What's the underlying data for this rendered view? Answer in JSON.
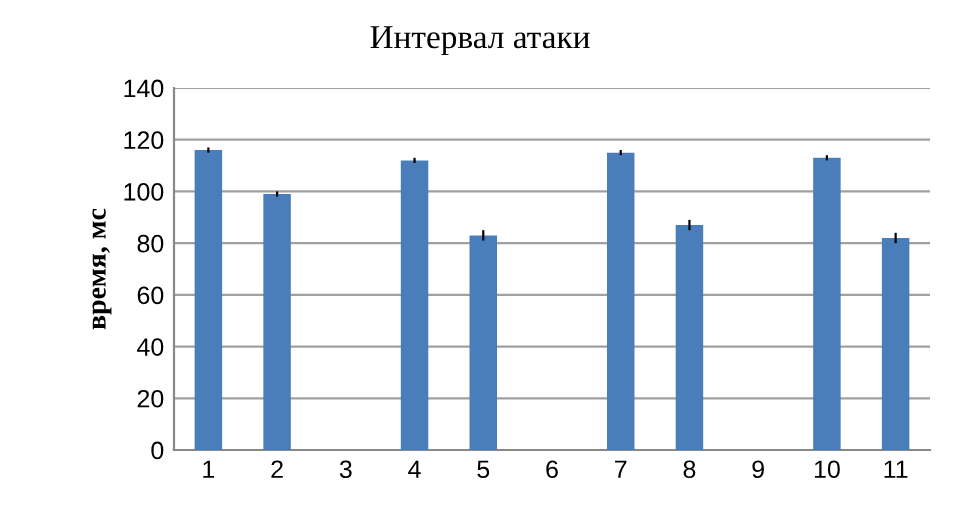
{
  "chart_data": {
    "type": "bar",
    "title": "Интервал атаки",
    "ylabel": "время, мс",
    "categories": [
      "1",
      "2",
      "3",
      "4",
      "5",
      "6",
      "7",
      "8",
      "9",
      "10",
      "11"
    ],
    "values": [
      116,
      99,
      null,
      112,
      83,
      null,
      115,
      87,
      null,
      113,
      82
    ],
    "errors": [
      1,
      1,
      null,
      1,
      2,
      null,
      1,
      2,
      null,
      1,
      2
    ],
    "color": "#4a7ebb",
    "ylim": [
      0,
      140
    ],
    "yticks": [
      0,
      20,
      40,
      60,
      80,
      100,
      120,
      140
    ],
    "grid": "y"
  }
}
